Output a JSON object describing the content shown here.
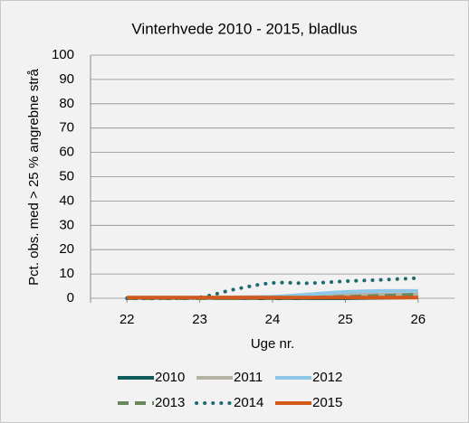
{
  "chart_data": {
    "type": "line",
    "title": "Vinterhvede 2010 - 2015, bladlus",
    "xlabel": "Uge nr.",
    "ylabel": "Pct. obs. med > 25 % angrebne strå",
    "x": [
      22,
      22.5,
      23,
      23.5,
      24,
      24.5,
      25,
      25.5,
      26
    ],
    "series": [
      {
        "name": "2010",
        "color": "#0f5b5c",
        "dash": "solid",
        "values": [
          0,
          0,
          0,
          0,
          0,
          0,
          0,
          0.2,
          0.4
        ]
      },
      {
        "name": "2011",
        "color": "#b4b2a3",
        "dash": "solid",
        "values": [
          0.3,
          0.3,
          0.3,
          0.4,
          0.6,
          1,
          1.5,
          1.5,
          1.5
        ]
      },
      {
        "name": "2012",
        "color": "#8ec7e6",
        "dash": "solid",
        "values": [
          0,
          0,
          0,
          0.2,
          0.6,
          1.6,
          2.6,
          3,
          3
        ]
      },
      {
        "name": "2013",
        "color": "#6b875c",
        "dash": "dashed",
        "values": [
          0,
          0,
          0,
          0,
          0,
          0.2,
          0.6,
          1,
          1.5
        ]
      },
      {
        "name": "2014",
        "color": "#1d6b72",
        "dash": "dotted",
        "values": [
          0,
          0,
          0.4,
          3.8,
          6.3,
          6.2,
          7,
          7.6,
          8.3
        ]
      },
      {
        "name": "2015",
        "color": "#d2581c",
        "dash": "solid",
        "values": [
          0.3,
          0.3,
          0.3,
          0.3,
          0.3,
          0.3,
          0.3,
          0.3,
          0.3
        ]
      }
    ],
    "xlim": [
      21.5,
      26.5
    ],
    "xticks": [
      22,
      23,
      24,
      25,
      26
    ],
    "ylim": [
      0,
      100
    ],
    "yticks": [
      0,
      10,
      20,
      30,
      40,
      50,
      60,
      70,
      80,
      90,
      100
    ],
    "grid": true,
    "legend": "bottom"
  }
}
